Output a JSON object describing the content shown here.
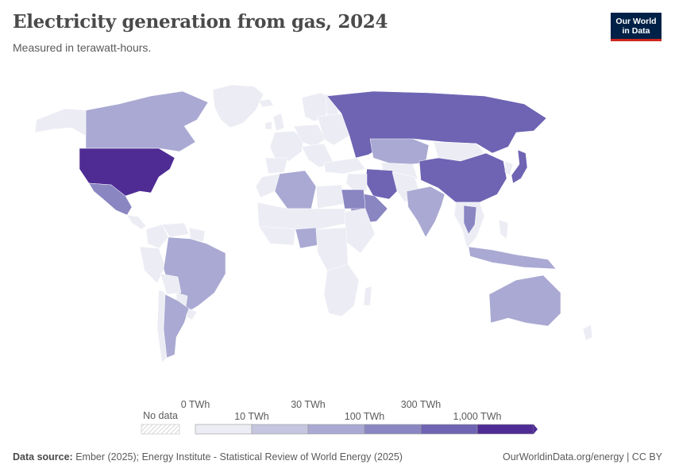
{
  "header": {
    "title": "Electricity generation from gas, 2024",
    "subtitle": "Measured in terawatt-hours.",
    "logo_line1": "Our World",
    "logo_line2": "in Data"
  },
  "legend": {
    "no_data_label": "No data",
    "bins": [
      {
        "label": "0 TWh",
        "color": "#ececf4"
      },
      {
        "label": "10 TWh",
        "color": "#c6c6e0"
      },
      {
        "label": "30 TWh",
        "color": "#a9a9d3"
      },
      {
        "label": "100 TWh",
        "color": "#8a86c2"
      },
      {
        "label": "300 TWh",
        "color": "#6e64b3"
      },
      {
        "label": "1,000 TWh",
        "color": "#4f2c94"
      }
    ]
  },
  "colors": {
    "no_data": "#ffffff",
    "border": "#ffffff",
    "ocean": "#ffffff"
  },
  "chart_data": {
    "type": "choropleth",
    "metric": "Electricity generation from gas",
    "unit": "TWh",
    "year": 2024,
    "bin_edges": [
      0,
      10,
      30,
      100,
      300,
      1000
    ],
    "regions": [
      {
        "name": "United States",
        "bin": "1,000 TWh+"
      },
      {
        "name": "Russia",
        "bin": "300–1,000 TWh"
      },
      {
        "name": "China",
        "bin": "300–1,000 TWh"
      },
      {
        "name": "Japan",
        "bin": "300–1,000 TWh"
      },
      {
        "name": "Iran",
        "bin": "300–1,000 TWh"
      },
      {
        "name": "Mexico",
        "bin": "100–300 TWh"
      },
      {
        "name": "Saudi Arabia",
        "bin": "100–300 TWh"
      },
      {
        "name": "Thailand",
        "bin": "100–300 TWh"
      },
      {
        "name": "Egypt",
        "bin": "100–300 TWh"
      },
      {
        "name": "Canada",
        "bin": "30–100 TWh"
      },
      {
        "name": "Australia",
        "bin": "30–100 TWh"
      },
      {
        "name": "Brazil",
        "bin": "30–100 TWh"
      },
      {
        "name": "Argentina",
        "bin": "30–100 TWh"
      },
      {
        "name": "India",
        "bin": "30–100 TWh"
      },
      {
        "name": "Kazakhstan",
        "bin": "30–100 TWh"
      },
      {
        "name": "Algeria",
        "bin": "30–100 TWh"
      },
      {
        "name": "Nigeria",
        "bin": "30–100 TWh"
      },
      {
        "name": "Indonesia",
        "bin": "30–100 TWh"
      },
      {
        "name": "Mongolia",
        "bin": "0–10 TWh"
      },
      {
        "name": "Greenland",
        "bin": "0–10 TWh"
      }
    ]
  },
  "footer": {
    "source_label": "Data source:",
    "source_text": "Ember (2025); Energy Institute - Statistical Review of World Energy (2025)",
    "link_text": "OurWorldinData.org/energy | CC BY"
  }
}
